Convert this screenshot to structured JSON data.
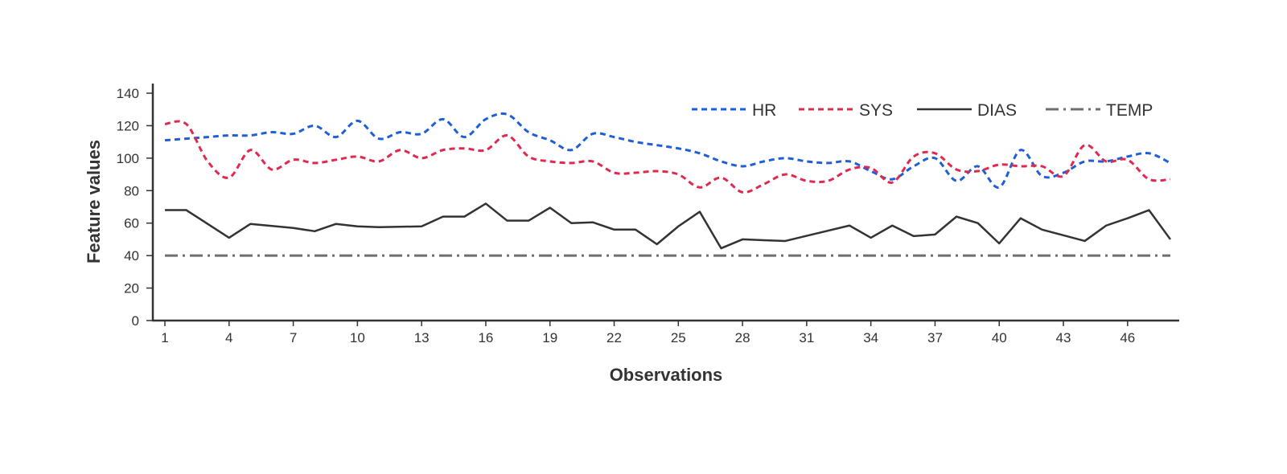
{
  "chart_data": {
    "type": "line",
    "xlabel": "Observations",
    "ylabel": "Feature values",
    "xlim": [
      1,
      48
    ],
    "ylim": [
      0,
      140
    ],
    "x_ticks": [
      1,
      4,
      7,
      10,
      13,
      16,
      19,
      22,
      25,
      28,
      31,
      34,
      37,
      40,
      43,
      46
    ],
    "y_ticks": [
      0,
      20,
      40,
      60,
      80,
      100,
      120,
      140
    ],
    "grid": false,
    "legend_position": "top-right",
    "series": [
      {
        "name": "HR",
        "color": "#1f5fd6",
        "style": "dotted",
        "smooth": true,
        "values": [
          111,
          112,
          113,
          114,
          114,
          116,
          115,
          120,
          113,
          123,
          112,
          116,
          115,
          124,
          113,
          124,
          127,
          116,
          111,
          105,
          115,
          113,
          110,
          108,
          106,
          103,
          98,
          95,
          98,
          100,
          98,
          97,
          98,
          92,
          87,
          95,
          100,
          86,
          95,
          82,
          105,
          89,
          91,
          98,
          98,
          101,
          103,
          97
        ]
      },
      {
        "name": "SYS",
        "color": "#e0294e",
        "style": "dotted",
        "smooth": true,
        "values": [
          121,
          121,
          98,
          88,
          105,
          93,
          99,
          97,
          99,
          101,
          98,
          105,
          100,
          105,
          106,
          105,
          114,
          101,
          98,
          97,
          98,
          91,
          91,
          92,
          90,
          82,
          88,
          79,
          84,
          90,
          86,
          86,
          93,
          94,
          85,
          101,
          103,
          93,
          92,
          96,
          95,
          95,
          89,
          108,
          98,
          99,
          87,
          87
        ]
      },
      {
        "name": "DIAS",
        "color": "#333333",
        "style": "solid",
        "smooth": false,
        "values": [
          68,
          68,
          51,
          59.5,
          57,
          55,
          59.5,
          58,
          57.5,
          58,
          64,
          64,
          72,
          61.5,
          61.5,
          69.5,
          60,
          60.5,
          56,
          56,
          47,
          58,
          67,
          44.5,
          50,
          49.5,
          49,
          58.5,
          51,
          58.5,
          52,
          53,
          64,
          60,
          47.5,
          63,
          56,
          49,
          58.5,
          63,
          68,
          50
        ]
      },
      {
        "name": "TEMP",
        "color": "#6e6e6e",
        "style": "dashdot",
        "smooth": false,
        "values": [
          40,
          40,
          40,
          40,
          40,
          40,
          40,
          40,
          40,
          40,
          40,
          40,
          40,
          40,
          40,
          40,
          40,
          40,
          40,
          40,
          40,
          40,
          40,
          40,
          40,
          40,
          40,
          40,
          40,
          40,
          40,
          40,
          40,
          40,
          40,
          40,
          40,
          40,
          40,
          40,
          40,
          40,
          40,
          40,
          40,
          40,
          40,
          40
        ]
      }
    ],
    "dias_x": [
      1,
      2,
      4,
      5,
      7,
      8,
      9,
      10,
      11,
      13,
      14,
      15,
      16,
      17,
      18,
      19,
      20,
      21,
      22,
      23,
      24,
      25,
      26,
      27,
      28,
      29,
      30,
      33,
      34,
      35,
      36,
      37,
      38,
      39,
      40,
      41,
      42,
      44,
      45,
      46,
      47,
      48
    ]
  }
}
